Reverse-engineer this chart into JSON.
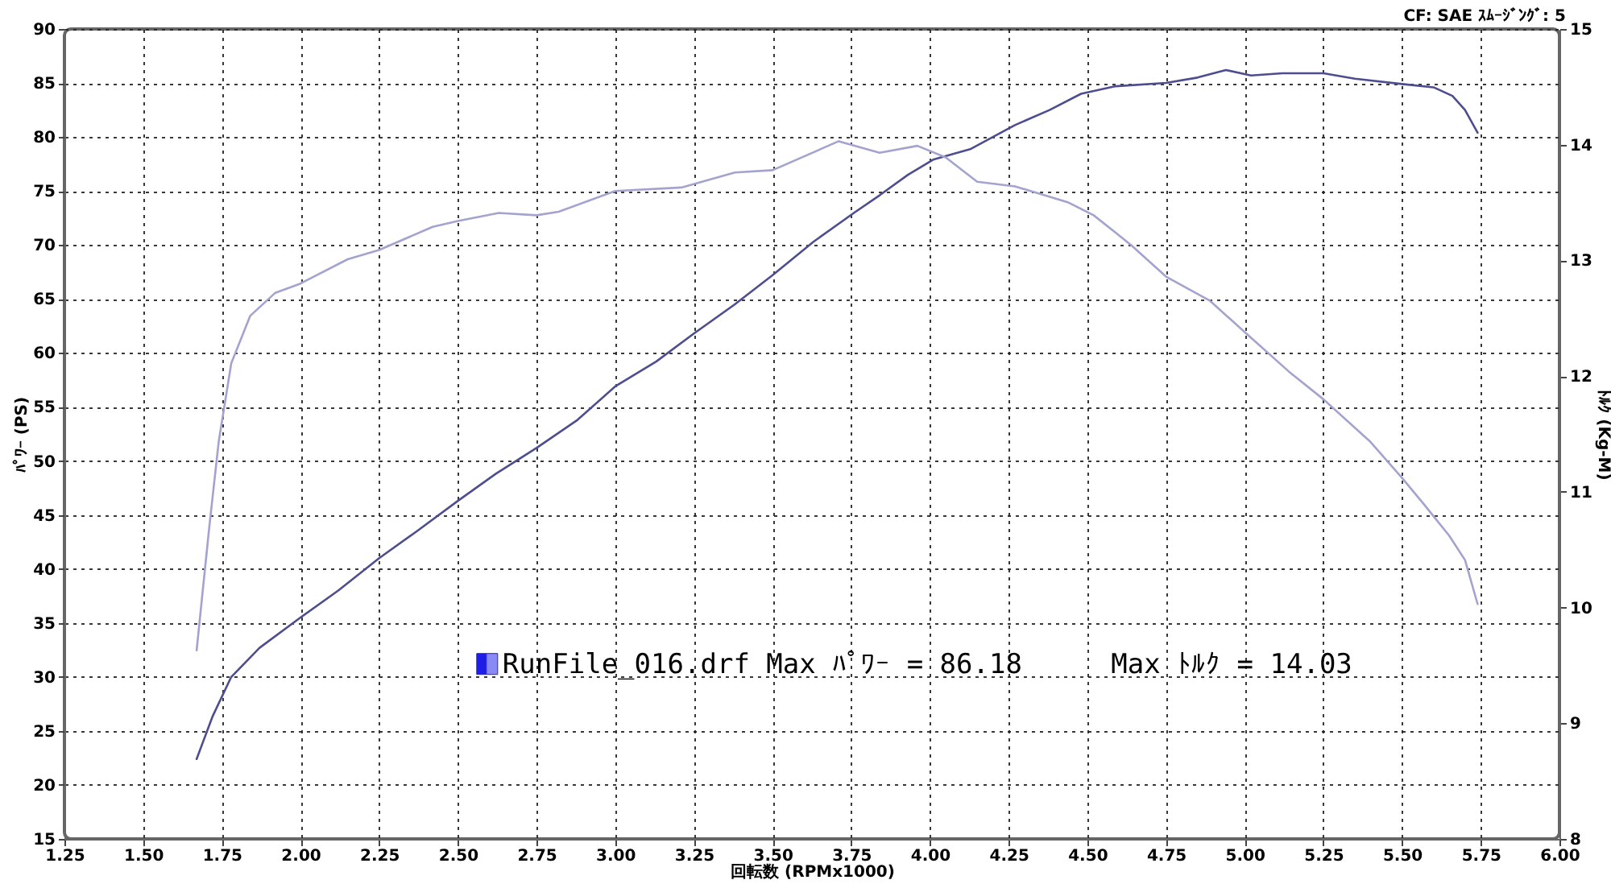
{
  "chart_data": {
    "type": "line",
    "xlabel": "回転数 (RPMx1000)",
    "ylabel": "ﾊﾟﾜｰ (PS)",
    "y2label": "ﾄﾙｸ (Kg-M)",
    "annotations": [
      "CF: SAE ｽﾑｰｼﾞﾝｸﾞ: 5",
      "RunFile_016.drf Max ﾊﾟﾜｰ = 86.18",
      "Max ﾄﾙｸ = 14.03"
    ],
    "series": [
      {
        "color": "#4d4d8f",
        "x": [
          1.67,
          1.72,
          1.78,
          1.87,
          2.0,
          2.12,
          2.25,
          2.37,
          2.5,
          2.62,
          2.75,
          2.88,
          3.0,
          3.13,
          3.25,
          3.38,
          3.5,
          3.63,
          3.76,
          3.84,
          3.93,
          4.01,
          4.13,
          4.27,
          4.38,
          4.48,
          4.59,
          4.75,
          4.85,
          4.94,
          5.02,
          5.12,
          5.25,
          5.35,
          5.5,
          5.6,
          5.66,
          5.7,
          5.74
        ],
        "values": [
          22.4,
          26.3,
          30.0,
          32.7,
          35.5,
          38.0,
          41.0,
          43.5,
          46.3,
          48.8,
          51.2,
          53.8,
          56.9,
          59.2,
          61.8,
          64.5,
          67.2,
          70.3,
          73.0,
          74.6,
          76.5,
          77.9,
          78.9,
          81.1,
          82.5,
          84.0,
          84.7,
          85.0,
          85.5,
          86.2,
          85.7,
          85.9,
          85.9,
          85.4,
          84.9,
          84.6,
          83.8,
          82.5,
          80.4
        ]
      },
      {
        "color": "#a3a3cf",
        "axis": "y2",
        "x": [
          1.67,
          1.71,
          1.74,
          1.78,
          1.84,
          1.92,
          2.0,
          2.15,
          2.25,
          2.42,
          2.5,
          2.63,
          2.75,
          2.82,
          3.0,
          3.21,
          3.38,
          3.5,
          3.71,
          3.84,
          3.96,
          4.05,
          4.15,
          4.27,
          4.44,
          4.52,
          4.59,
          4.64,
          4.75,
          4.89,
          5.0,
          5.14,
          5.25,
          5.4,
          5.5,
          5.57,
          5.65,
          5.7,
          5.74
        ],
        "values": [
          9.63,
          10.69,
          11.43,
          12.11,
          12.52,
          12.72,
          12.8,
          13.01,
          13.09,
          13.29,
          13.34,
          13.41,
          13.39,
          13.42,
          13.6,
          13.63,
          13.76,
          13.78,
          14.03,
          13.93,
          13.99,
          13.89,
          13.68,
          13.64,
          13.5,
          13.39,
          13.24,
          13.13,
          12.86,
          12.65,
          12.38,
          12.04,
          11.8,
          11.43,
          11.12,
          10.89,
          10.62,
          10.41,
          10.03
        ]
      }
    ],
    "xlim": [
      1.25,
      6
    ],
    "xticks": [
      1.25,
      {
        "value": 1.5,
        "label": "1.50"
      },
      1.75,
      {
        "value": 2,
        "label": "2.00"
      },
      2.25,
      {
        "value": 2.5,
        "label": "2.50"
      },
      2.75,
      {
        "value": 3,
        "label": "3.00"
      },
      3.25,
      {
        "value": 3.5,
        "label": "3.50"
      },
      3.75,
      {
        "value": 4,
        "label": "4.00"
      },
      4.25,
      {
        "value": 4.5,
        "label": "4.50"
      },
      4.75,
      {
        "value": 5,
        "label": "5.00"
      },
      5.25,
      {
        "value": 5.5,
        "label": "5.50"
      },
      5.75,
      {
        "value": 6,
        "label": "6.00"
      }
    ],
    "ylim": [
      15,
      90
    ],
    "yticks": [
      15,
      20,
      25,
      30,
      35,
      40,
      45,
      50,
      55,
      60,
      65,
      70,
      75,
      80,
      85,
      90
    ],
    "y2lim": [
      8,
      15
    ],
    "y2ticks": [
      8,
      9,
      10,
      11,
      12,
      13,
      14,
      15
    ],
    "grid": true
  }
}
